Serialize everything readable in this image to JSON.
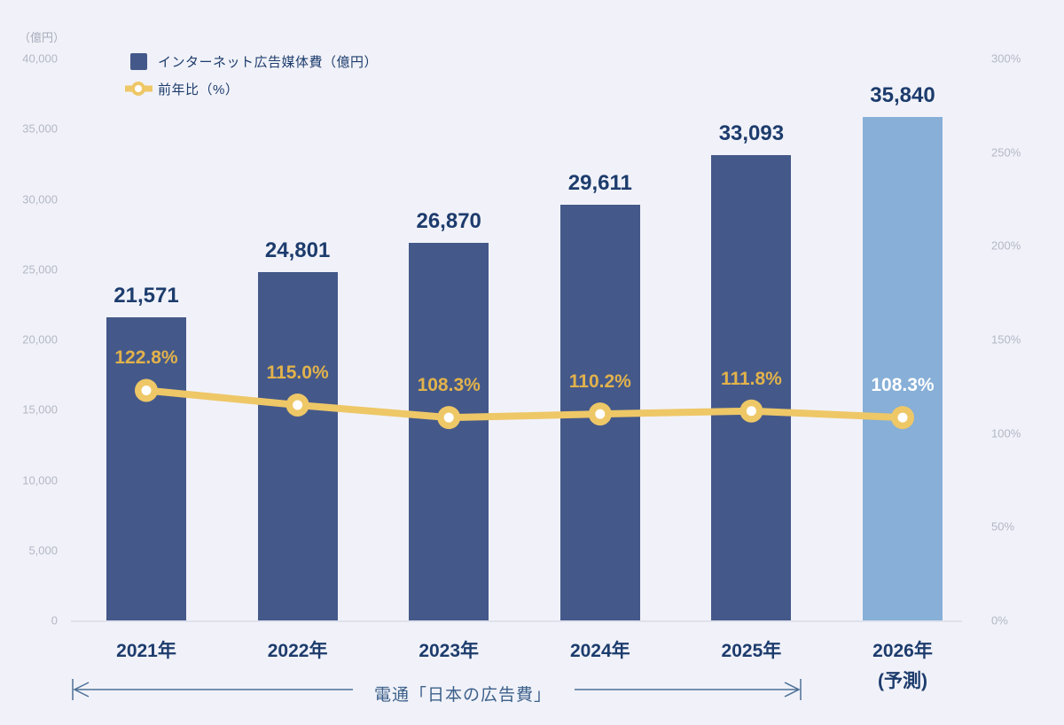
{
  "colors": {
    "background": "#f1f2f9",
    "bar": "#44598a",
    "bar_forecast": "#87afd7",
    "line": "#eec767",
    "marker_center": "#ffffff",
    "value_text": "#1d3c6d",
    "pct_text_gold": "#e2b24b",
    "pct_text_white": "#ffffff",
    "tick_text": "#b3b7c5",
    "axis_line": "#dfe2ec",
    "annotation": "#3c608a"
  },
  "legend": {
    "bar_label": "インターネット広告媒体費（億円）",
    "line_label": "前年比（%）"
  },
  "left_axis": {
    "title": "（億円）",
    "ticks": [
      "40,000",
      "35,000",
      "30,000",
      "25,000",
      "20,000",
      "15,000",
      "10,000",
      "5,000",
      "0"
    ]
  },
  "right_axis": {
    "ticks": [
      "300%",
      "250%",
      "200%",
      "150%",
      "100%",
      "50%",
      "0%"
    ]
  },
  "chart_data": {
    "type": "bar",
    "categories": [
      "2021年",
      "2022年",
      "2023年",
      "2024年",
      "2025年",
      "2026年"
    ],
    "series": [
      {
        "name": "インターネット広告媒体費（億円）",
        "type": "bar",
        "axis": "left",
        "values": [
          21571,
          24801,
          26870,
          29611,
          33093,
          35840
        ],
        "labels": [
          "21,571",
          "24,801",
          "26,870",
          "29,611",
          "33,093",
          "35,840"
        ]
      },
      {
        "name": "前年比（%）",
        "type": "line",
        "axis": "right",
        "values": [
          122.8,
          115.0,
          108.3,
          110.2,
          111.8,
          108.3
        ],
        "labels": [
          "122.8%",
          "115.0%",
          "108.3%",
          "110.2%",
          "111.8%",
          "108.3%"
        ]
      }
    ],
    "forecast_index": 5,
    "forecast_note": "(予測)",
    "left_ylim": [
      0,
      40000
    ],
    "right_ylim": [
      0,
      300
    ],
    "grid": false,
    "legend_position": "top-left",
    "annotation": {
      "arrow_label": "電通「日本の広告費」",
      "arrow_span_categories": [
        "2021年",
        "2025年"
      ]
    }
  }
}
